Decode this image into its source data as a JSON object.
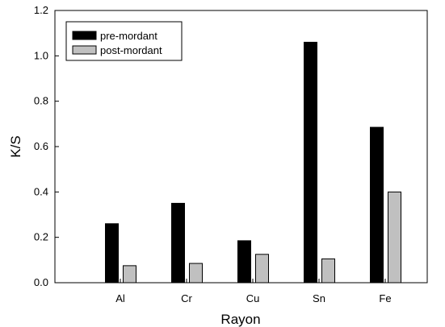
{
  "chart_data": {
    "type": "bar",
    "title": "",
    "xlabel": "Rayon",
    "ylabel": "K/S",
    "ylim": [
      0,
      1.2
    ],
    "yticks": [
      "0.0",
      "0.2",
      "0.4",
      "0.6",
      "0.8",
      "1.0",
      "1.2"
    ],
    "ytick_values": [
      0,
      0.2,
      0.4,
      0.6,
      0.8,
      1.0,
      1.2
    ],
    "categories": [
      "Al",
      "Cr",
      "Cu",
      "Sn",
      "Fe"
    ],
    "series": [
      {
        "name": "pre-mordant",
        "values": [
          0.26,
          0.35,
          0.185,
          1.06,
          0.685
        ],
        "color": "#000000"
      },
      {
        "name": "post-mordant",
        "values": [
          0.075,
          0.085,
          0.125,
          0.105,
          0.4
        ],
        "color": "#c0c0c0"
      }
    ],
    "legend_position": "top-left",
    "grid": false
  }
}
